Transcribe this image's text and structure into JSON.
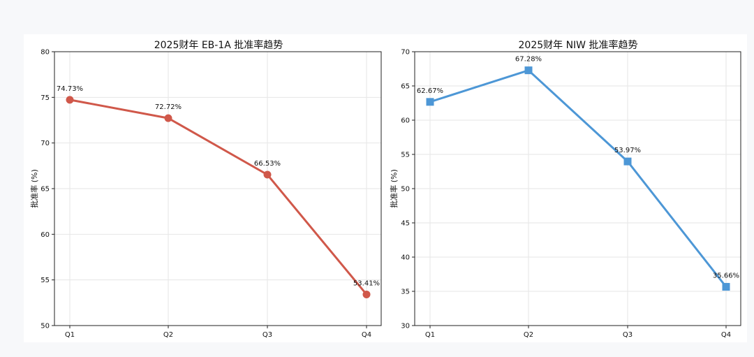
{
  "chart_data": [
    {
      "type": "line",
      "title": "2025财年 EB-1A 批准率趋势",
      "xlabel": "",
      "ylabel": "批准率 (%)",
      "categories": [
        "Q1",
        "Q2",
        "Q3",
        "Q4"
      ],
      "series": [
        {
          "values": [
            74.73,
            72.72,
            66.53,
            53.41
          ],
          "color": "#d0584a",
          "marker": "circle"
        }
      ],
      "data_labels": [
        "74.73%",
        "72.72%",
        "66.53%",
        "53.41%"
      ],
      "ylim": [
        50,
        80
      ],
      "yticks": [
        "50",
        "55",
        "60",
        "65",
        "70",
        "75",
        "80"
      ],
      "ytick_values": [
        50,
        55,
        60,
        65,
        70,
        75,
        80
      ],
      "grid": true
    },
    {
      "type": "line",
      "title": "2025财年 NIW 批准率趋势",
      "xlabel": "",
      "ylabel": "批准率 (%)",
      "categories": [
        "Q1",
        "Q2",
        "Q3",
        "Q4"
      ],
      "series": [
        {
          "values": [
            62.67,
            67.28,
            53.97,
            35.66
          ],
          "color": "#4d97d6",
          "marker": "square"
        }
      ],
      "data_labels": [
        "62.67%",
        "67.28%",
        "53.97%",
        "35.66%"
      ],
      "ylim": [
        30,
        70
      ],
      "yticks": [
        "30",
        "35",
        "40",
        "45",
        "50",
        "55",
        "60",
        "65",
        "70"
      ],
      "ytick_values": [
        30,
        35,
        40,
        45,
        50,
        55,
        60,
        65,
        70
      ],
      "grid": true
    }
  ]
}
